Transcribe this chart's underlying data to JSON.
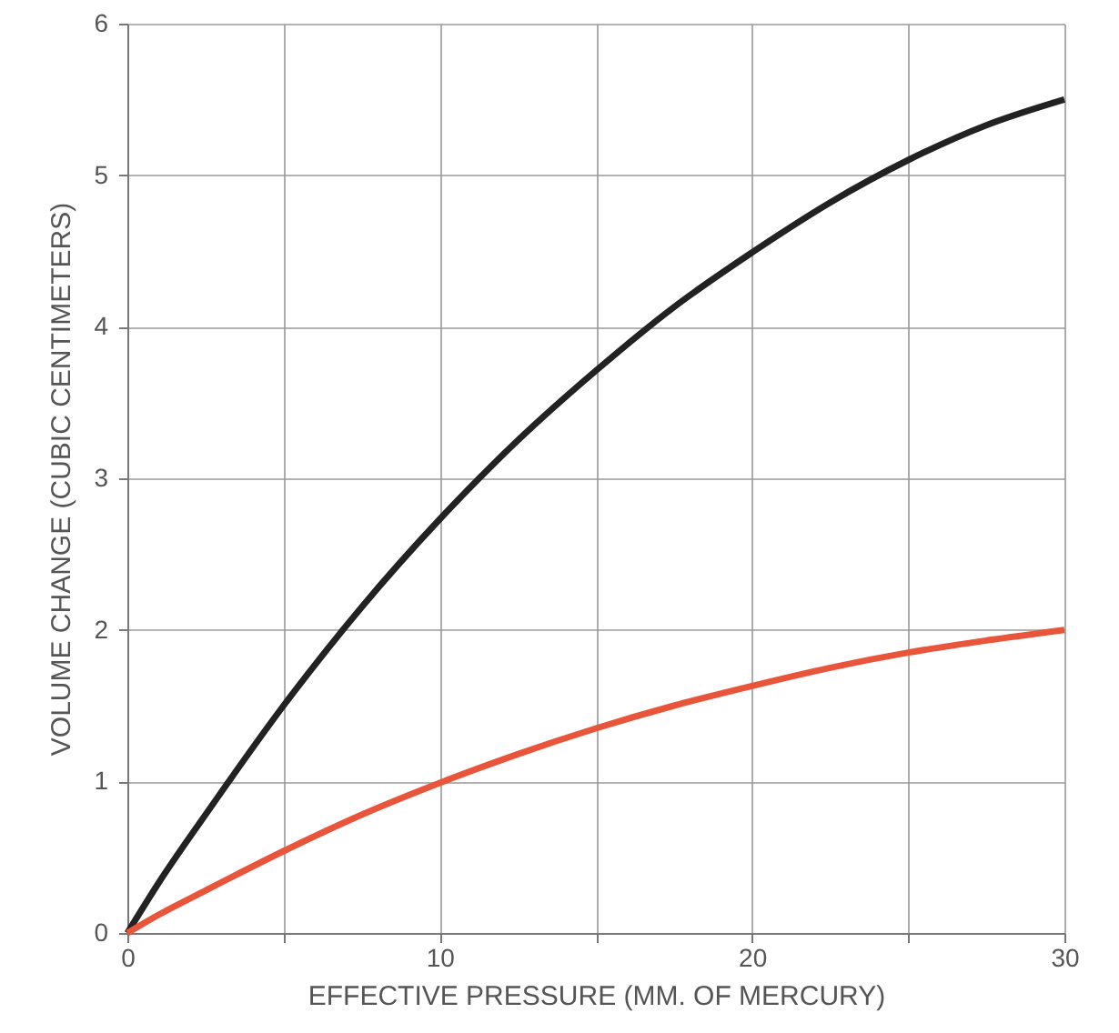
{
  "chart_data": {
    "type": "line",
    "xlabel": "EFFECTIVE PRESSURE (MM. OF MERCURY)",
    "ylabel": "VOLUME CHANGE (CUBIC CENTIMETERS)",
    "x": [
      0,
      1,
      2.5,
      5,
      7.5,
      10,
      12.5,
      15,
      17.5,
      20,
      22.5,
      25,
      27.5,
      30
    ],
    "series": [
      {
        "color": "#222222",
        "values": [
          0,
          0.33,
          0.78,
          1.5,
          2.15,
          2.73,
          3.25,
          3.71,
          4.13,
          4.49,
          4.82,
          5.1,
          5.33,
          5.5
        ]
      },
      {
        "color": "#e8553a",
        "values": [
          0,
          0.12,
          0.28,
          0.54,
          0.78,
          0.99,
          1.18,
          1.35,
          1.5,
          1.63,
          1.75,
          1.85,
          1.93,
          2.0
        ]
      }
    ],
    "xlim": [
      0,
      30
    ],
    "xticks": [
      0,
      {
        "value": 5,
        "label": null
      },
      10,
      {
        "value": 15,
        "label": null
      },
      20,
      {
        "value": 25,
        "label": null
      },
      30
    ],
    "ylim": [
      0,
      6
    ],
    "yticks": [
      0,
      1,
      2,
      3,
      4,
      5,
      6
    ],
    "grid": true,
    "line_style": "solid",
    "marker": "none"
  }
}
